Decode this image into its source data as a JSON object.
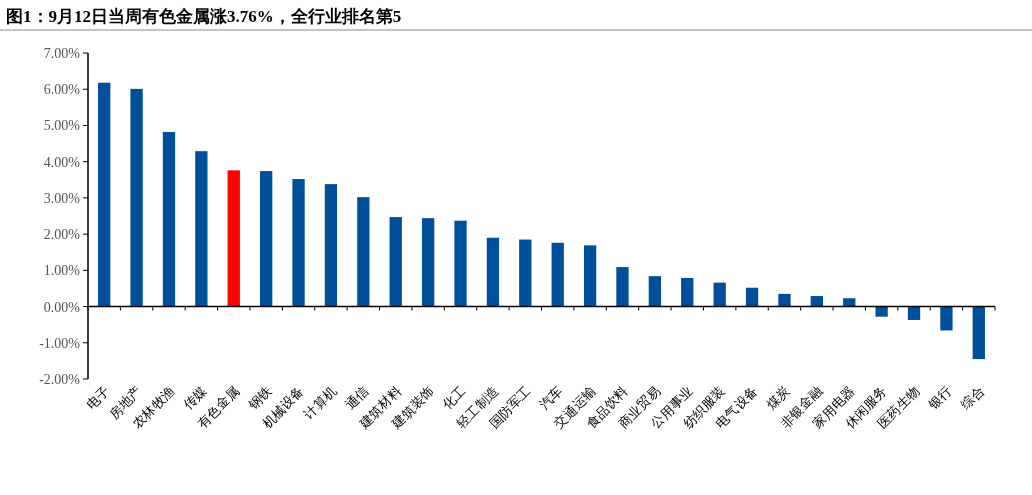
{
  "chart_data": {
    "type": "bar",
    "title": "图1：9月12日当周有色金属涨3.76%，全行业排名第5",
    "categories": [
      "电子",
      "房地产",
      "农林牧渔",
      "传媒",
      "有色金属",
      "钢铁",
      "机械设备",
      "计算机",
      "通信",
      "建筑材料",
      "建筑装饰",
      "化工",
      "轻工制造",
      "国防军工",
      "汽车",
      "交通运输",
      "食品饮料",
      "商业贸易",
      "公用事业",
      "纺织服装",
      "电气设备",
      "煤炭",
      "非银金融",
      "家用电器",
      "休闲服务",
      "医药生物",
      "银行",
      "综合"
    ],
    "values": [
      6.18,
      6.01,
      4.82,
      4.29,
      3.76,
      3.74,
      3.52,
      3.38,
      3.02,
      2.47,
      2.44,
      2.37,
      1.9,
      1.85,
      1.76,
      1.69,
      1.09,
      0.84,
      0.79,
      0.66,
      0.52,
      0.35,
      0.29,
      0.23,
      -0.28,
      -0.37,
      -0.66,
      -1.45
    ],
    "colors": [
      "#004f9a",
      "#004f9a",
      "#004f9a",
      "#004f9a",
      "#ff0000",
      "#004f9a",
      "#004f9a",
      "#004f9a",
      "#004f9a",
      "#004f9a",
      "#004f9a",
      "#004f9a",
      "#004f9a",
      "#004f9a",
      "#004f9a",
      "#004f9a",
      "#004f9a",
      "#004f9a",
      "#004f9a",
      "#004f9a",
      "#004f9a",
      "#004f9a",
      "#004f9a",
      "#004f9a",
      "#004f9a",
      "#004f9a",
      "#004f9a",
      "#004f9a"
    ],
    "ylim": [
      -2,
      7
    ],
    "yticks": [
      {
        "value": -2,
        "label": "-2.00%"
      },
      {
        "value": -1,
        "label": "-1.00%"
      },
      {
        "value": 0,
        "label": "0.00%"
      },
      {
        "value": 1,
        "label": "1.00%"
      },
      {
        "value": 2,
        "label": "2.00%"
      },
      {
        "value": 3,
        "label": "3.00%"
      },
      {
        "value": 4,
        "label": "4.00%"
      },
      {
        "value": 5,
        "label": "5.00%"
      },
      {
        "value": 6,
        "label": "6.00%"
      },
      {
        "value": 7,
        "label": "7.00%"
      }
    ],
    "orientation": "vertical"
  }
}
